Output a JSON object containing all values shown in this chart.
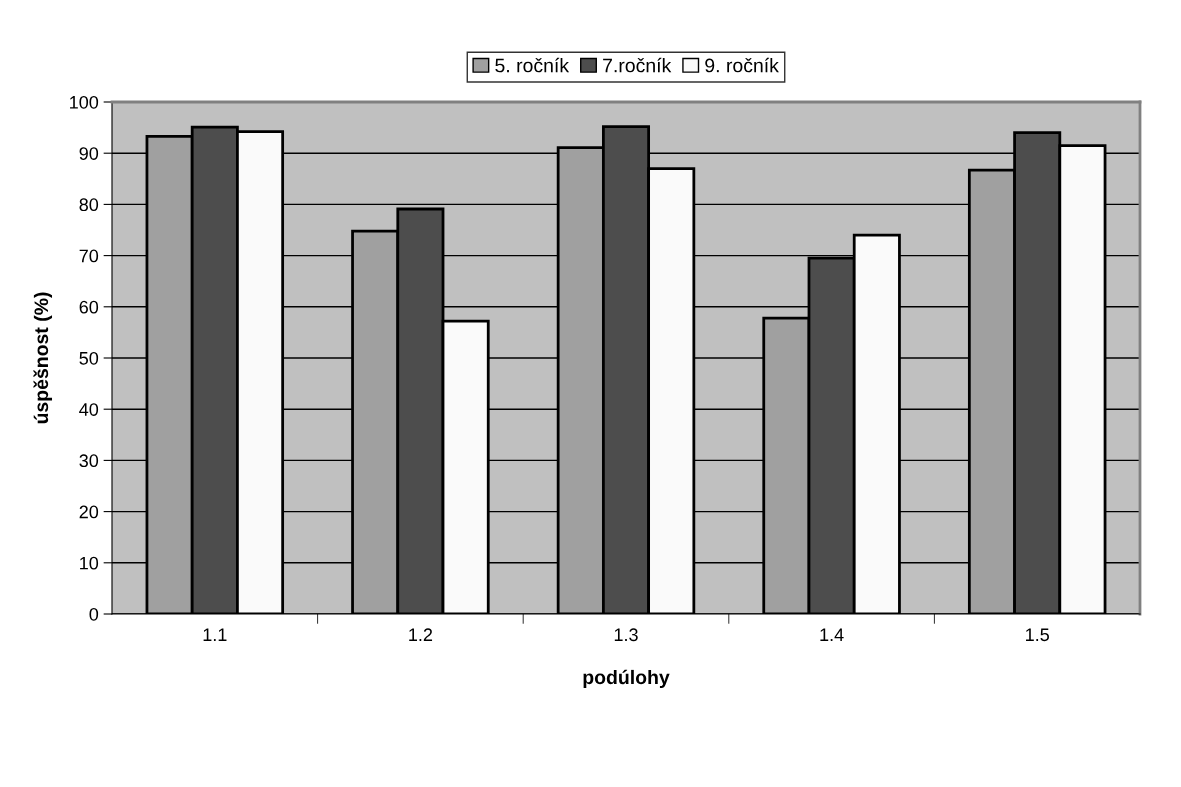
{
  "chart_data": {
    "type": "bar",
    "xlabel": "podúlohy",
    "ylabel": "úspěšnost (%)",
    "categories": [
      "1.1",
      "1.2",
      "1.3",
      "1.4",
      "1.5"
    ],
    "series": [
      {
        "name": "5. ročník",
        "color": "#a0a0a0",
        "values": [
          93.3,
          74.8,
          91.1,
          57.8,
          86.7
        ]
      },
      {
        "name": "7.ročník",
        "color": "#4d4d4d",
        "values": [
          95.1,
          79.1,
          95.2,
          69.5,
          94.0
        ]
      },
      {
        "name": "9. ročník",
        "color": "#fafafa",
        "values": [
          94.2,
          57.2,
          87.0,
          74.0,
          91.5
        ]
      }
    ],
    "ylim": [
      0,
      100
    ],
    "yticks": [
      0,
      10,
      20,
      30,
      40,
      50,
      60,
      70,
      80,
      90,
      100
    ],
    "grid": "y",
    "legend": "top"
  }
}
